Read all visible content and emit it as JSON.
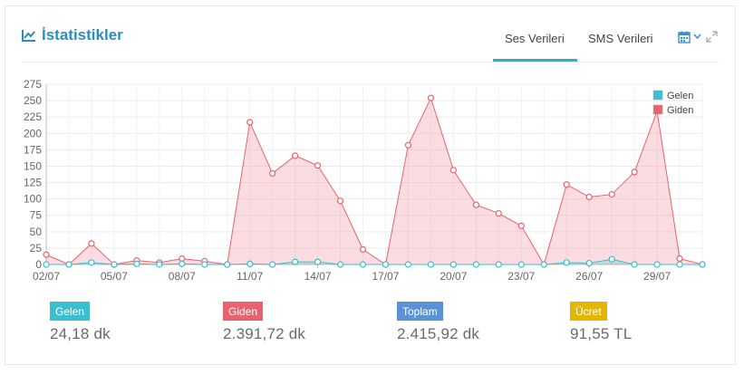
{
  "title": "İstatistikler",
  "tabs": [
    {
      "label": "Ses Verileri",
      "active": true
    },
    {
      "label": "SMS Verileri",
      "active": false
    }
  ],
  "toolbar": {
    "icons": [
      "calendar-icon",
      "chevron-down-icon",
      "expand-icon"
    ]
  },
  "colors": {
    "accent": "#26b3c5",
    "gelen": "#39bfcf",
    "giden": "#e8636e",
    "toplam": "#5b92d6",
    "ucret": "#e5b600",
    "title": "#2a8fbd"
  },
  "chart_data": {
    "type": "area",
    "ylim": [
      0,
      275
    ],
    "yticks": [
      0,
      25,
      50,
      75,
      100,
      125,
      150,
      175,
      200,
      225,
      250,
      275
    ],
    "x": [
      "02/07",
      "03/07",
      "04/07",
      "05/07",
      "06/07",
      "07/07",
      "08/07",
      "09/07",
      "10/07",
      "11/07",
      "12/07",
      "13/07",
      "14/07",
      "15/07",
      "16/07",
      "17/07",
      "18/07",
      "19/07",
      "20/07",
      "21/07",
      "22/07",
      "23/07",
      "24/07",
      "25/07",
      "26/07",
      "27/07",
      "28/07",
      "29/07",
      "30/07",
      "31/07"
    ],
    "xtick_labels": [
      "02/07",
      "05/07",
      "08/07",
      "11/07",
      "14/07",
      "17/07",
      "20/07",
      "23/07",
      "26/07",
      "29/07"
    ],
    "legend_position": "top-right",
    "series": [
      {
        "name": "Gelen",
        "color": "#39bfcf",
        "values": [
          0,
          0,
          3,
          0,
          1,
          0,
          1,
          0,
          0,
          1,
          0,
          4,
          4,
          0,
          0,
          0,
          0,
          0,
          0,
          0,
          0,
          0,
          0,
          3,
          2,
          8,
          0,
          0,
          0,
          0
        ]
      },
      {
        "name": "Giden",
        "color": "#e8636e",
        "values": [
          15,
          0,
          32,
          0,
          6,
          3,
          9,
          5,
          0,
          217,
          139,
          166,
          151,
          97,
          23,
          0,
          182,
          254,
          144,
          91,
          78,
          59,
          0,
          122,
          103,
          107,
          141,
          234,
          9,
          0
        ]
      }
    ]
  },
  "stats": [
    {
      "label": "Gelen",
      "value": "24,18 dk",
      "color": "#39bfcf"
    },
    {
      "label": "Giden",
      "value": "2.391,72 dk",
      "color": "#e8636e"
    },
    {
      "label": "Toplam",
      "value": "2.415,92 dk",
      "color": "#5b92d6"
    },
    {
      "label": "Ücret",
      "value": "91,55 TL",
      "color": "#e5b600"
    }
  ]
}
